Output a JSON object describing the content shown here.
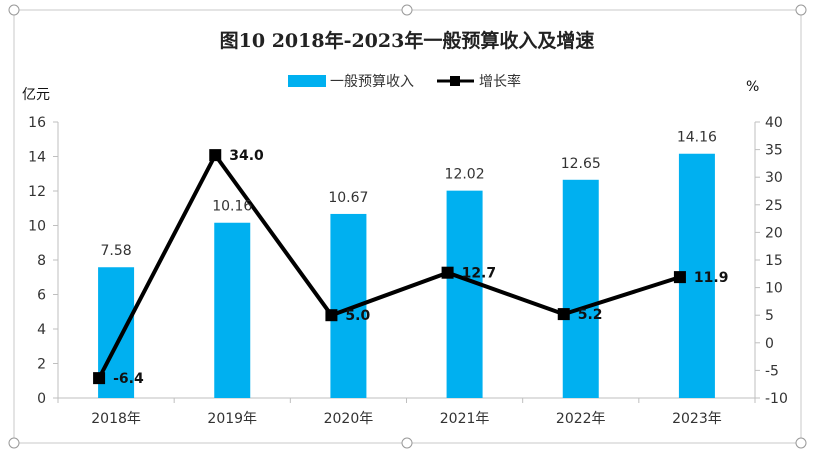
{
  "chart_data": {
    "type": "bar",
    "title": "图10  2018年-2023年一般预算收入及增速",
    "categories": [
      "2018年",
      "2019年",
      "2020年",
      "2021年",
      "2022年",
      "2023年"
    ],
    "left_axis": {
      "unit": "亿元",
      "range": [
        0,
        16
      ],
      "ticks": [
        "0",
        "2",
        "4",
        "6",
        "8",
        "10",
        "12",
        "14",
        "16"
      ]
    },
    "right_axis": {
      "unit": "%",
      "range": [
        -10,
        40
      ],
      "ticks": [
        "-10",
        "-5",
        "0",
        "5",
        "10",
        "15",
        "20",
        "25",
        "30",
        "35",
        "40"
      ]
    },
    "series": [
      {
        "name": "一般预算收入",
        "type": "bar",
        "axis": "left",
        "color": "#00B0F0",
        "values": [
          7.58,
          10.16,
          10.67,
          12.02,
          12.65,
          14.16
        ],
        "labels": [
          "7.58",
          "10.16",
          "10.67",
          "12.02",
          "12.65",
          "14.16"
        ]
      },
      {
        "name": "增长率",
        "type": "line",
        "axis": "right",
        "color": "#000000",
        "values": [
          -6.4,
          34.0,
          5.0,
          12.7,
          5.2,
          11.9
        ],
        "labels": [
          "-6.4",
          "34.0",
          "5.0",
          "12.7",
          "5.2",
          "11.9"
        ]
      }
    ],
    "legend": "top-center",
    "grid": false
  }
}
